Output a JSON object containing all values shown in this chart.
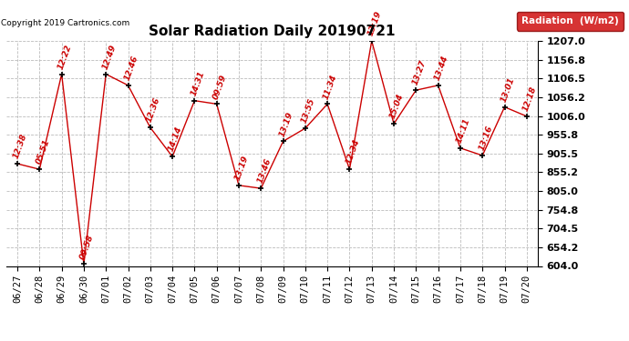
{
  "title": "Solar Radiation Daily 20190721",
  "copyright": "Copyright 2019 Cartronics.com",
  "legend_label": "Radiation  (W/m2)",
  "x_labels": [
    "06/27",
    "06/28",
    "06/29",
    "06/30",
    "07/01",
    "07/02",
    "07/03",
    "07/04",
    "07/05",
    "07/06",
    "07/07",
    "07/08",
    "07/09",
    "07/10",
    "07/11",
    "07/12",
    "07/13",
    "07/14",
    "07/15",
    "07/16",
    "07/17",
    "07/18",
    "07/19",
    "07/20"
  ],
  "y_values": [
    878,
    863,
    1118,
    609,
    1118,
    1088,
    975,
    897,
    1047,
    1038,
    820,
    812,
    938,
    973,
    1038,
    863,
    1207,
    985,
    1075,
    1088,
    920,
    900,
    1030,
    1005
  ],
  "time_labels": [
    "12:38",
    "05:51",
    "12:22",
    "09:58",
    "12:49",
    "12:46",
    "12:36",
    "14:14",
    "14:31",
    "09:59",
    "13:19",
    "13:46",
    "13:19",
    "13:55",
    "11:34",
    "12:34",
    "13:19",
    "15:04",
    "13:27",
    "13:44",
    "14:11",
    "13:16",
    "13:01",
    "12:18"
  ],
  "ylim_min": 604.0,
  "ylim_max": 1207.0,
  "yticks": [
    604.0,
    654.2,
    704.5,
    754.8,
    805.0,
    855.2,
    905.5,
    955.8,
    1006.0,
    1056.2,
    1106.5,
    1156.8,
    1207.0
  ],
  "line_color": "#cc0000",
  "marker_color": "black",
  "bg_color": "#ffffff",
  "grid_color": "#bbbbbb",
  "title_fontsize": 11,
  "label_fontsize": 6.5,
  "tick_fontsize": 7.5,
  "ytick_fontsize": 8,
  "legend_bg": "#cc0000",
  "legend_text_color": "white"
}
